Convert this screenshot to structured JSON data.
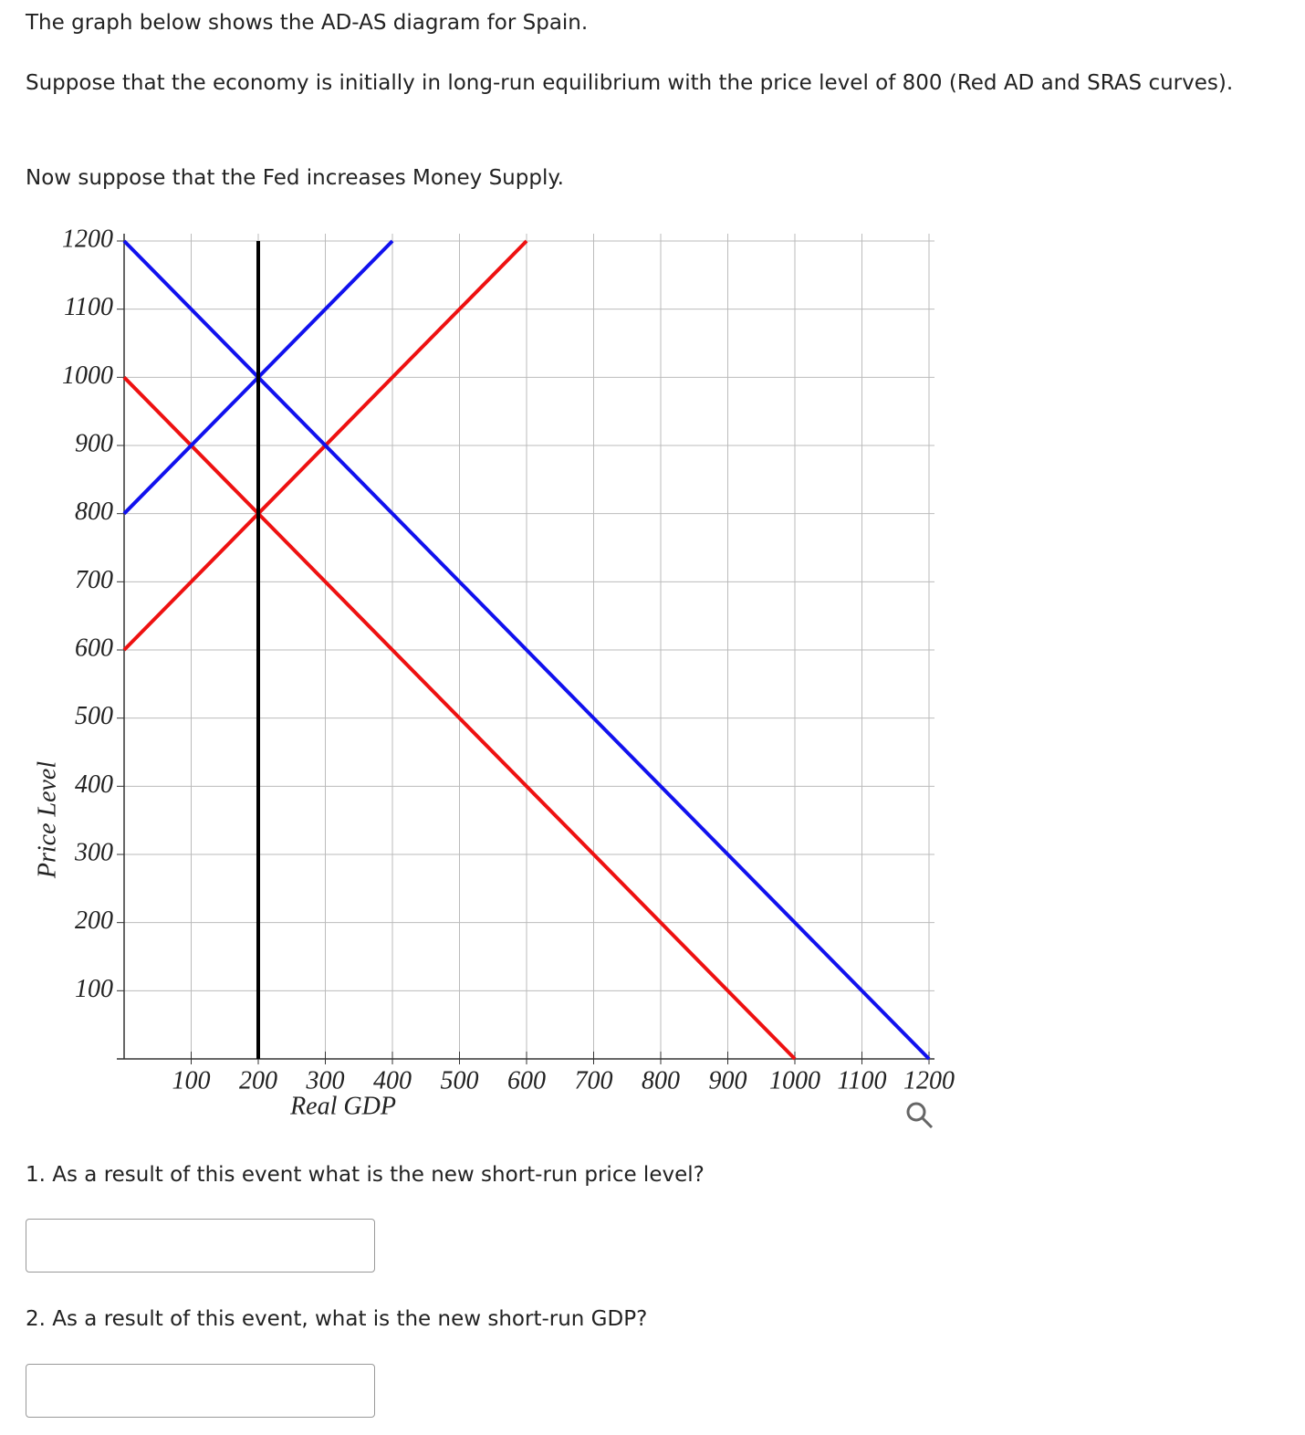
{
  "intro": [
    "The graph below shows the AD-AS diagram for Spain.",
    "Suppose that the economy is initially in long-run equilibrium with the price level of 800 (Red AD and SRAS curves).",
    "Now suppose that the Fed increases Money Supply."
  ],
  "chart_data": {
    "type": "line",
    "x_label": "Real GDP",
    "y_label": "Price Level",
    "xlim": [
      0,
      1200
    ],
    "ylim": [
      0,
      1200
    ],
    "xticks": [
      100,
      200,
      300,
      400,
      500,
      600,
      700,
      800,
      900,
      1000,
      1100,
      1200
    ],
    "yticks": [
      100,
      200,
      300,
      400,
      500,
      600,
      700,
      800,
      900,
      1000,
      1100,
      1200
    ],
    "grid": true,
    "series": [
      {
        "color": "#ee1111",
        "x": [
          0,
          1000
        ],
        "values": [
          1000,
          0
        ]
      },
      {
        "color": "#ee1111",
        "x": [
          0,
          600
        ],
        "values": [
          600,
          1200
        ]
      },
      {
        "color": "#1111ee",
        "x": [
          0,
          1200
        ],
        "values": [
          1200,
          0
        ]
      },
      {
        "color": "#1111ee",
        "x": [
          0,
          400
        ],
        "values": [
          800,
          1200
        ]
      },
      {
        "color": "#000000",
        "x": [
          200,
          200
        ],
        "values": [
          0,
          1200
        ]
      }
    ]
  },
  "questions": [
    "1. As a result of this event what is the new short-run price level?",
    "2. As a result of this event, what is the new short-run GDP?"
  ]
}
